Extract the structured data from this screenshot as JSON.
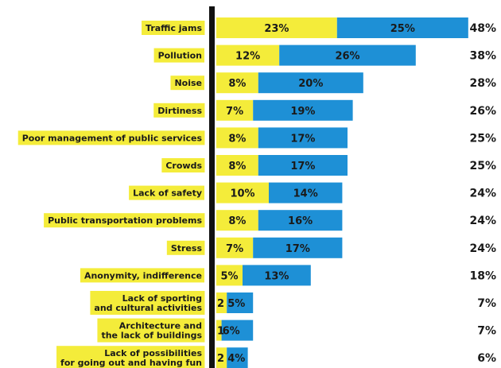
{
  "chart_data": {
    "type": "bar",
    "stacked": true,
    "orientation": "horizontal",
    "xlim": [
      0,
      50
    ],
    "colors": {
      "series_1": "#f4ec3a",
      "series_2": "#1e90d6",
      "axis": "#111111",
      "label_bg": "#f4ec3a"
    },
    "categories": [
      [
        "Traffic jams"
      ],
      [
        "Pollution"
      ],
      [
        "Noise"
      ],
      [
        "Dirtiness"
      ],
      [
        "Poor management of public services"
      ],
      [
        "Crowds"
      ],
      [
        "Lack of safety"
      ],
      [
        "Public transportation problems"
      ],
      [
        "Stress"
      ],
      [
        "Anonymity, indifference"
      ],
      [
        "Lack of sporting",
        "and cultural activities"
      ],
      [
        "Architecture and",
        "the lack of buildings"
      ],
      [
        "Lack of possibilities",
        "for going out and having fun"
      ]
    ],
    "series": [
      {
        "values": [
          23,
          12,
          8,
          7,
          8,
          8,
          10,
          8,
          7,
          5,
          2,
          1,
          2
        ],
        "labels": [
          "23%",
          "12%",
          "8%",
          "7%",
          "8%",
          "8%",
          "10%",
          "8%",
          "7%",
          "5%",
          "2",
          "1",
          "2"
        ]
      },
      {
        "values": [
          25,
          26,
          20,
          19,
          17,
          17,
          14,
          16,
          17,
          13,
          5,
          6,
          4
        ],
        "labels": [
          "25%",
          "26%",
          "20%",
          "19%",
          "17%",
          "17%",
          "14%",
          "16%",
          "17%",
          "13%",
          "5%",
          "6%",
          "4%"
        ]
      }
    ],
    "totals": [
      "48%",
      "38%",
      "28%",
      "26%",
      "25%",
      "25%",
      "24%",
      "24%",
      "24%",
      "18%",
      "7%",
      "7%",
      "6%"
    ]
  }
}
